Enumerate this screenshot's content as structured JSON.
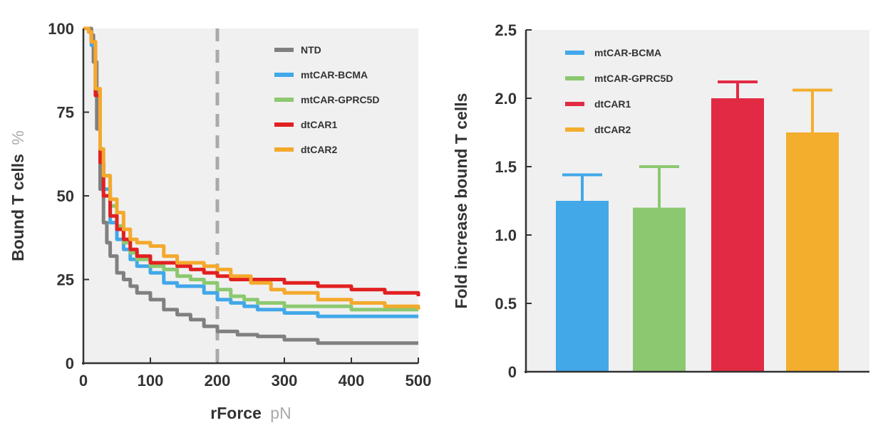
{
  "chart_data": [
    {
      "type": "line",
      "xlabel": "rForce",
      "xunit": "pN",
      "ylabel": "Bound T cells",
      "yunit": "%",
      "xlim": [
        0,
        500
      ],
      "ylim": [
        0,
        100
      ],
      "xticks": [
        "0",
        "100",
        "200",
        "300",
        "400",
        "500"
      ],
      "yticks": [
        "0",
        "25",
        "50",
        "75",
        "100"
      ],
      "reference_line": {
        "x": 200,
        "style": "dashed",
        "color": "#aaaaaa"
      },
      "legend_position": "top-right",
      "series": [
        {
          "name": "NTD",
          "color": "#808080",
          "points": [
            [
              0,
              100
            ],
            [
              8,
              100
            ],
            [
              12,
              98
            ],
            [
              15,
              90
            ],
            [
              20,
              70
            ],
            [
              25,
              52
            ],
            [
              30,
              42
            ],
            [
              35,
              36
            ],
            [
              40,
              32
            ],
            [
              50,
              27
            ],
            [
              60,
              25
            ],
            [
              70,
              23
            ],
            [
              80,
              21
            ],
            [
              100,
              19
            ],
            [
              120,
              16
            ],
            [
              140,
              14.5
            ],
            [
              160,
              13
            ],
            [
              180,
              11
            ],
            [
              200,
              9.5
            ],
            [
              230,
              8.5
            ],
            [
              260,
              8
            ],
            [
              300,
              7
            ],
            [
              350,
              6
            ],
            [
              400,
              6
            ],
            [
              500,
              6
            ]
          ]
        },
        {
          "name": "mtCAR-BCMA",
          "color": "#42a8e8",
          "points": [
            [
              0,
              100
            ],
            [
              8,
              99
            ],
            [
              12,
              95
            ],
            [
              18,
              80
            ],
            [
              25,
              60
            ],
            [
              30,
              52
            ],
            [
              40,
              42
            ],
            [
              50,
              37
            ],
            [
              60,
              34
            ],
            [
              70,
              31
            ],
            [
              80,
              29
            ],
            [
              100,
              27
            ],
            [
              120,
              24
            ],
            [
              140,
              23
            ],
            [
              160,
              23
            ],
            [
              180,
              21
            ],
            [
              200,
              19
            ],
            [
              220,
              18
            ],
            [
              240,
              17
            ],
            [
              260,
              16
            ],
            [
              300,
              15
            ],
            [
              350,
              14
            ],
            [
              400,
              14
            ],
            [
              500,
              14
            ]
          ]
        },
        {
          "name": "mtCAR-GPRC5D",
          "color": "#8cc870",
          "points": [
            [
              0,
              100
            ],
            [
              8,
              99
            ],
            [
              12,
              96
            ],
            [
              18,
              82
            ],
            [
              25,
              64
            ],
            [
              30,
              56
            ],
            [
              40,
              47
            ],
            [
              50,
              41
            ],
            [
              60,
              36
            ],
            [
              70,
              33
            ],
            [
              80,
              31
            ],
            [
              100,
              29
            ],
            [
              120,
              28
            ],
            [
              140,
              26
            ],
            [
              160,
              25
            ],
            [
              180,
              24
            ],
            [
              200,
              22
            ],
            [
              220,
              20
            ],
            [
              240,
              19
            ],
            [
              260,
              18
            ],
            [
              300,
              17
            ],
            [
              350,
              17
            ],
            [
              400,
              16
            ],
            [
              500,
              16
            ]
          ]
        },
        {
          "name": "dtCAR1",
          "color": "#e22020",
          "points": [
            [
              0,
              100
            ],
            [
              8,
              99
            ],
            [
              12,
              96
            ],
            [
              18,
              80
            ],
            [
              25,
              60
            ],
            [
              30,
              50
            ],
            [
              40,
              44
            ],
            [
              50,
              40
            ],
            [
              60,
              37
            ],
            [
              70,
              34
            ],
            [
              80,
              32
            ],
            [
              100,
              30
            ],
            [
              120,
              30
            ],
            [
              140,
              29
            ],
            [
              160,
              28
            ],
            [
              180,
              27
            ],
            [
              200,
              26
            ],
            [
              220,
              25
            ],
            [
              250,
              25
            ],
            [
              280,
              25
            ],
            [
              300,
              24
            ],
            [
              350,
              23
            ],
            [
              400,
              22
            ],
            [
              450,
              21
            ],
            [
              500,
              20
            ]
          ]
        },
        {
          "name": "dtCAR2",
          "color": "#f4a92c",
          "points": [
            [
              0,
              100
            ],
            [
              8,
              99
            ],
            [
              12,
              96
            ],
            [
              18,
              82
            ],
            [
              25,
              64
            ],
            [
              30,
              56
            ],
            [
              40,
              49
            ],
            [
              50,
              45
            ],
            [
              60,
              40
            ],
            [
              70,
              37
            ],
            [
              80,
              36
            ],
            [
              100,
              35
            ],
            [
              120,
              32
            ],
            [
              140,
              30
            ],
            [
              160,
              30
            ],
            [
              180,
              29
            ],
            [
              200,
              28
            ],
            [
              220,
              26
            ],
            [
              250,
              24
            ],
            [
              280,
              22
            ],
            [
              300,
              21
            ],
            [
              350,
              19
            ],
            [
              400,
              18
            ],
            [
              450,
              17
            ],
            [
              500,
              16
            ]
          ]
        }
      ]
    },
    {
      "type": "bar",
      "ylabel": "Fold increase bound T cells",
      "ylim": [
        0,
        2.5
      ],
      "yticks": [
        "0",
        "0.5",
        "1.0",
        "1.5",
        "2.0",
        "2.5"
      ],
      "legend_position": "top-left",
      "categories": [
        "mtCAR-BCMA",
        "mtCAR-GPRC5D",
        "dtCAR1",
        "dtCAR2"
      ],
      "values": [
        1.25,
        1.2,
        2.0,
        1.75
      ],
      "errors": [
        0.19,
        0.3,
        0.12,
        0.31
      ],
      "colors": [
        "#42a8e8",
        "#8cc870",
        "#e22a44",
        "#f4ae2e"
      ]
    }
  ]
}
